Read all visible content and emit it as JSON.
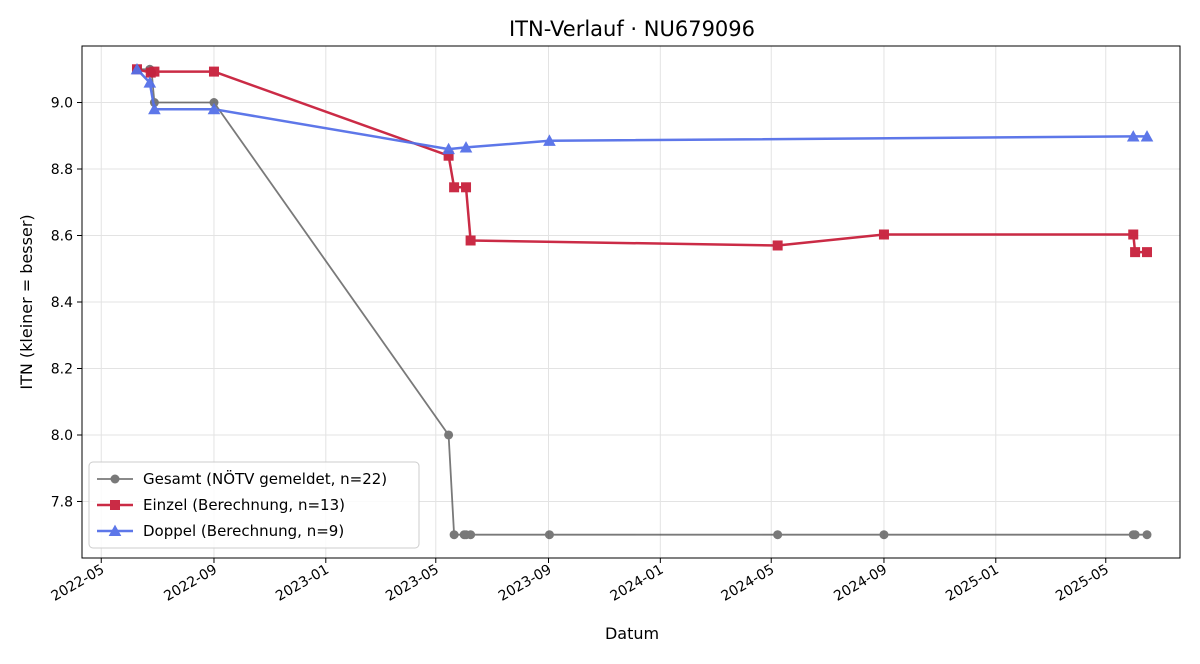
{
  "chart_data": {
    "type": "line",
    "title": "ITN-Verlauf · NU679096",
    "xlabel": "Datum",
    "ylabel": "ITN  (kleiner = besser)",
    "x_type": "date",
    "xlim": [
      "2022-04-10",
      "2025-07-21"
    ],
    "ylim": [
      7.63,
      9.17
    ],
    "x_ticks": [
      "2022-05-01",
      "2022-09-01",
      "2023-01-01",
      "2023-05-01",
      "2023-09-01",
      "2024-01-01",
      "2024-05-01",
      "2024-09-01",
      "2025-01-01",
      "2025-05-01"
    ],
    "x_tick_labels": [
      "2022-05",
      "2022-09",
      "2023-01",
      "2023-05",
      "2023-09",
      "2024-01",
      "2024-05",
      "2024-09",
      "2025-01",
      "2025-05"
    ],
    "y_ticks": [
      7.8,
      8.0,
      8.2,
      8.4,
      8.6,
      8.8,
      9.0
    ],
    "y_tick_labels": [
      "7.8",
      "8.0",
      "8.2",
      "8.4",
      "8.6",
      "8.8",
      "9.0"
    ],
    "grid": true,
    "legend_position": "lower-left",
    "series": [
      {
        "name": "Gesamt (NÖTV gemeldet, n=22)",
        "color": "#4d4d4d",
        "marker": "circle",
        "points": [
          {
            "x": "2022-06-09",
            "y": 9.1
          },
          {
            "x": "2022-06-23",
            "y": 9.1
          },
          {
            "x": "2022-06-25",
            "y": 9.09
          },
          {
            "x": "2022-06-28",
            "y": 9.0
          },
          {
            "x": "2022-09-01",
            "y": 9.0
          },
          {
            "x": "2023-05-15",
            "y": 8.0
          },
          {
            "x": "2023-05-21",
            "y": 7.7
          },
          {
            "x": "2023-06-01",
            "y": 7.7
          },
          {
            "x": "2023-06-03",
            "y": 7.7
          },
          {
            "x": "2023-06-08",
            "y": 7.7
          },
          {
            "x": "2023-09-02",
            "y": 7.7
          },
          {
            "x": "2024-05-08",
            "y": 7.7
          },
          {
            "x": "2024-09-01",
            "y": 7.7
          },
          {
            "x": "2025-05-31",
            "y": 7.7
          },
          {
            "x": "2025-06-02",
            "y": 7.7
          },
          {
            "x": "2025-06-15",
            "y": 7.7
          }
        ]
      },
      {
        "name": "Einzel (Berechnung, n=13)",
        "color": "#c8203c",
        "marker": "square",
        "points": [
          {
            "x": "2022-06-09",
            "y": 9.1
          },
          {
            "x": "2022-06-24",
            "y": 9.09
          },
          {
            "x": "2022-06-28",
            "y": 9.093
          },
          {
            "x": "2022-09-01",
            "y": 9.093
          },
          {
            "x": "2023-05-15",
            "y": 8.84
          },
          {
            "x": "2023-05-21",
            "y": 8.745
          },
          {
            "x": "2023-06-03",
            "y": 8.745
          },
          {
            "x": "2023-06-08",
            "y": 8.585
          },
          {
            "x": "2024-05-08",
            "y": 8.57
          },
          {
            "x": "2024-09-01",
            "y": 8.603
          },
          {
            "x": "2025-05-31",
            "y": 8.603
          },
          {
            "x": "2025-06-02",
            "y": 8.55
          },
          {
            "x": "2025-06-15",
            "y": 8.55
          }
        ]
      },
      {
        "name": "Doppel (Berechnung, n=9)",
        "color": "#5570e8",
        "marker": "triangle",
        "points": [
          {
            "x": "2022-06-09",
            "y": 9.1
          },
          {
            "x": "2022-06-23",
            "y": 9.06
          },
          {
            "x": "2022-06-28",
            "y": 8.98
          },
          {
            "x": "2022-09-01",
            "y": 8.98
          },
          {
            "x": "2023-05-15",
            "y": 8.86
          },
          {
            "x": "2023-06-03",
            "y": 8.865
          },
          {
            "x": "2023-09-02",
            "y": 8.885
          },
          {
            "x": "2025-05-31",
            "y": 8.898
          },
          {
            "x": "2025-06-15",
            "y": 8.898
          }
        ]
      }
    ]
  }
}
